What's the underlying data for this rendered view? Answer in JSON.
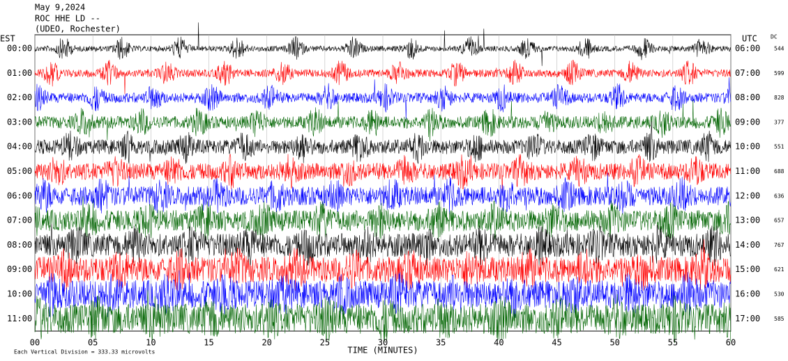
{
  "chart_data": {
    "type": "helicorder",
    "title": [
      "May 9,2024",
      "ROC HHE LD --",
      "(UDEO, Rochester)"
    ],
    "left_axis_label": "EST",
    "right_axis_label": "UTC",
    "dc_label": "DC",
    "x_label": "TIME (MINUTES)",
    "footnote": "Each Vertical Division =  333.33 microvolts",
    "xlim": [
      0,
      60
    ],
    "xticks": [
      {
        "value": 0,
        "label": "00"
      },
      {
        "value": 5,
        "label": "05"
      },
      10,
      15,
      20,
      25,
      30,
      35,
      40,
      45,
      50,
      55,
      60
    ],
    "left_times": [
      "00:00",
      "01:00",
      "02:00",
      "03:00",
      "04:00",
      "05:00",
      "06:00",
      "07:00",
      "08:00",
      "09:00",
      "10:00",
      "11:00"
    ],
    "right_times": [
      "06:00",
      "07:00",
      "08:00",
      "09:00",
      "10:00",
      "11:00",
      "12:00",
      "13:00",
      "14:00",
      "15:00",
      "16:00",
      "17:00"
    ],
    "dc": [
      544,
      599,
      828,
      377,
      551,
      688,
      636,
      657,
      767,
      621,
      530,
      585
    ],
    "colors": [
      "#000000",
      "#ff0000",
      "#0000ff",
      "#006400"
    ]
  }
}
